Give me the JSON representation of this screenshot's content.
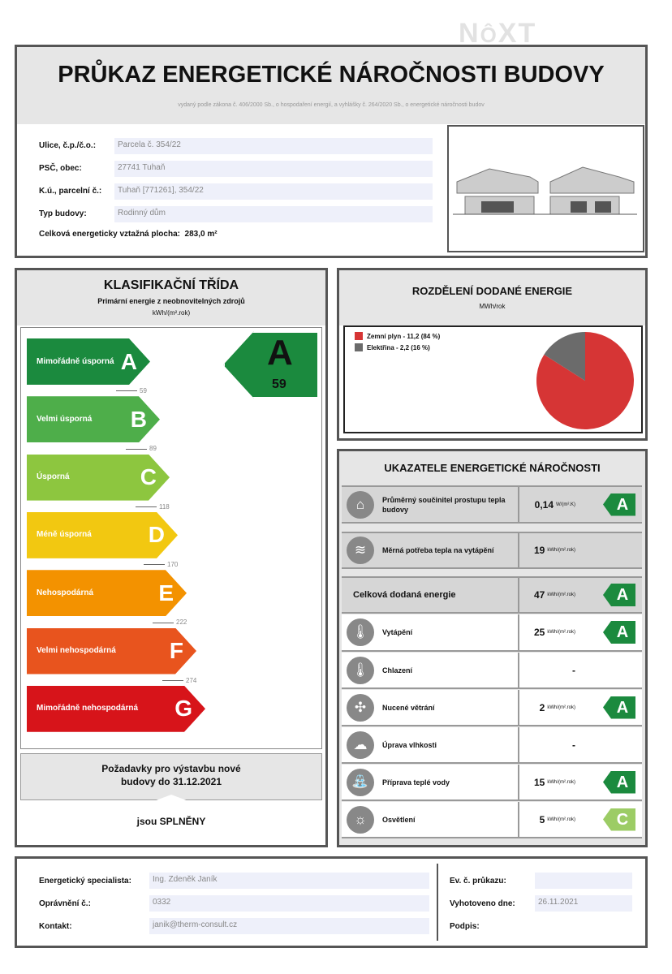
{
  "logo": "NEXT",
  "header": {
    "title": "PRŮKAZ ENERGETICKÉ NÁROČNOSTI BUDOVY",
    "subtitle": "vydaný podle zákona č. 406/2000 Sb., o hospodaření energií, a vyhlášky č. 264/2020 Sb., o energetické náročnosti budov",
    "fields": [
      {
        "label": "Ulice, č.p./č.o.:",
        "value": "Parcela č. 354/22"
      },
      {
        "label": "PSČ, obec:",
        "value": "27741 Tuhaň"
      },
      {
        "label": "K.ú., parcelní č.:",
        "value": "Tuhaň [771261], 354/22"
      },
      {
        "label": "Typ budovy:",
        "value": "Rodinný dům"
      }
    ],
    "area_label": "Celková energeticky vztažná plocha:",
    "area_value": "283,0 m²"
  },
  "classification": {
    "title": "KLASIFIKAČNÍ TŘÍDA",
    "subtitle": "Primární energie z neobnovitelných zdrojů",
    "unit": "kWh/(m².rok)",
    "classes": [
      {
        "letter": "A",
        "text": "Mimořádně úsporná",
        "color": "#1b8a3e",
        "threshold": "59"
      },
      {
        "letter": "B",
        "text": "Velmi úsporná",
        "color": "#4eae4a",
        "threshold": "89"
      },
      {
        "letter": "C",
        "text": "Úsporná",
        "color": "#8dc63f",
        "threshold": "118"
      },
      {
        "letter": "D",
        "text": "Méně úsporná",
        "color": "#f2c811",
        "threshold": "170"
      },
      {
        "letter": "E",
        "text": "Nehospodárná",
        "color": "#f39200",
        "threshold": "222"
      },
      {
        "letter": "F",
        "text": "Velmi nehospodárná",
        "color": "#e8541e",
        "threshold": "274"
      },
      {
        "letter": "G",
        "text": "Mimořádně nehospodárná",
        "color": "#d7141a",
        "threshold": ""
      }
    ],
    "result_class": "A",
    "result_value": "59",
    "requirements": "Požadavky pro výstavbu nové budovy do 31.12.2021",
    "requirements_result": "jsou SPLNĚNY"
  },
  "distribution": {
    "title": "ROZDĚLENÍ DODANÉ ENERGIE",
    "unit": "MWh/rok",
    "items": [
      {
        "label": "Zemní plyn - 11,2 (84 %)",
        "value": 11.2,
        "percent": 84,
        "color": "#d63535"
      },
      {
        "label": "Elektřina - 2,2 (16 %)",
        "value": 2.2,
        "percent": 16,
        "color": "#6b6b6b"
      }
    ]
  },
  "indicators": {
    "title": "UKAZATELE ENERGETICKÉ NÁROČNOSTI",
    "rows": [
      {
        "icon": "house-icon",
        "name": "Průměrný součinitel prostupu tepla budovy",
        "value": "0,14",
        "unit": "W/(m².K)",
        "class": "A",
        "color": "#1b8a3e",
        "shaded": true
      },
      {
        "icon": "heat-demand-icon",
        "name": "Měrná potřeba tepla na vytápění",
        "value": "19",
        "unit": "kWh/(m².rok)",
        "class": "",
        "shaded": true
      },
      {
        "icon": "",
        "name": "Celková dodaná energie",
        "value": "47",
        "unit": "kWh/(m².rok)",
        "class": "A",
        "color": "#1b8a3e",
        "shaded": true,
        "big": true
      },
      {
        "icon": "thermometer-heating-icon",
        "name": "Vytápění",
        "value": "25",
        "unit": "kWh/(m².rok)",
        "class": "A",
        "color": "#1b8a3e"
      },
      {
        "icon": "thermometer-cooling-icon",
        "name": "Chlazení",
        "value": "-",
        "unit": "",
        "class": ""
      },
      {
        "icon": "fan-icon",
        "name": "Nucené větrání",
        "value": "2",
        "unit": "kWh/(m².rok)",
        "class": "A",
        "color": "#1b8a3e"
      },
      {
        "icon": "humidity-icon",
        "name": "Úprava vlhkosti",
        "value": "-",
        "unit": "",
        "class": ""
      },
      {
        "icon": "water-tap-icon",
        "name": "Příprava teplé vody",
        "value": "15",
        "unit": "kWh/(m².rok)",
        "class": "A",
        "color": "#1b8a3e"
      },
      {
        "icon": "light-bulb-icon",
        "name": "Osvětlení",
        "value": "5",
        "unit": "kWh/(m².rok)",
        "class": "C",
        "color": "#9ccc65"
      }
    ]
  },
  "footer": {
    "specialist_label": "Energetický specialista:",
    "specialist": "Ing. Zdeněk Janík",
    "cert_label": "Oprávnění č.:",
    "cert": "0332",
    "contact_label": "Kontakt:",
    "contact": "janik@therm-consult.cz",
    "ev_label": "Ev. č. průkazu:",
    "ev": "",
    "date_label": "Vyhotoveno dne:",
    "date": "26.11.2021",
    "sign_label": "Podpis:"
  }
}
